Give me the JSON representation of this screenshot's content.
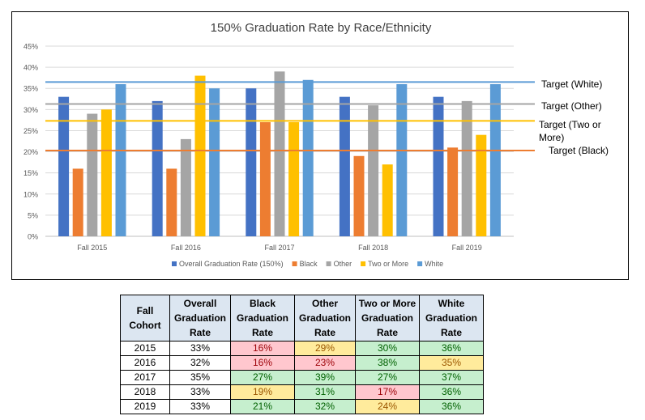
{
  "chart_data": {
    "type": "bar",
    "title": "150% Graduation Rate by Race/Ethnicity",
    "categories": [
      "Fall 2015",
      "Fall 2016",
      "Fall 2017",
      "Fall 2018",
      "Fall 2019"
    ],
    "series": [
      {
        "name": "Overall Graduation Rate (150%)",
        "color": "#4472c4",
        "values": [
          33,
          32,
          35,
          33,
          33
        ]
      },
      {
        "name": "Black",
        "color": "#ed7d31",
        "values": [
          16,
          16,
          27,
          19,
          21
        ]
      },
      {
        "name": "Other",
        "color": "#a5a5a5",
        "values": [
          29,
          23,
          39,
          31,
          32
        ]
      },
      {
        "name": "Two or More",
        "color": "#ffc000",
        "values": [
          30,
          38,
          27,
          17,
          24
        ]
      },
      {
        "name": "White",
        "color": "#5b9bd5",
        "values": [
          36,
          35,
          37,
          36,
          36
        ]
      }
    ],
    "targets": [
      {
        "label": "Target (White)",
        "value": 36.5,
        "color": "#5b9bd5"
      },
      {
        "label": "Target (Other)",
        "value": 31.3,
        "color": "#a5a5a5"
      },
      {
        "label": "Target (Two or More)",
        "value": 27.3,
        "color": "#ffc000"
      },
      {
        "label": "Target (Black)",
        "value": 20.3,
        "color": "#ed7d31"
      }
    ],
    "yticks": [
      "0%",
      "5%",
      "10%",
      "15%",
      "20%",
      "25%",
      "30%",
      "35%",
      "40%",
      "45%"
    ],
    "ylim": [
      0,
      45
    ],
    "xlabel": "",
    "ylabel": "",
    "legend": "bottom",
    "grid": true
  },
  "target_labels": {
    "white": "Target (White)",
    "other": "Target (Other)",
    "two_line1": "Target (Two or",
    "two_line2": "More)",
    "black": "Target (Black)"
  },
  "table": {
    "headers": [
      [
        "Fall",
        "Cohort"
      ],
      [
        "Overall",
        "Graduation",
        "Rate"
      ],
      [
        "Black",
        "Graduation",
        "Rate"
      ],
      [
        "Other",
        "Graduation",
        "Rate"
      ],
      [
        "Two or More",
        "Graduation",
        "Rate"
      ],
      [
        "White",
        "Graduation",
        "Rate"
      ]
    ],
    "rows": [
      [
        "2015",
        "33%",
        "16%",
        "29%",
        "30%",
        "36%"
      ],
      [
        "2016",
        "32%",
        "16%",
        "23%",
        "38%",
        "35%"
      ],
      [
        "2017",
        "35%",
        "27%",
        "39%",
        "27%",
        "37%"
      ],
      [
        "2018",
        "33%",
        "19%",
        "31%",
        "17%",
        "36%"
      ],
      [
        "2019",
        "33%",
        "21%",
        "32%",
        "24%",
        "36%"
      ]
    ],
    "row_styles": [
      [
        "plain",
        "plain",
        "bad",
        "mid",
        "good",
        "good"
      ],
      [
        "plain",
        "plain",
        "bad",
        "bad",
        "good",
        "mid"
      ],
      [
        "plain",
        "plain",
        "good",
        "good",
        "good",
        "good"
      ],
      [
        "plain",
        "plain",
        "mid",
        "good",
        "bad",
        "good"
      ],
      [
        "plain",
        "plain",
        "good",
        "good",
        "mid",
        "good"
      ]
    ]
  }
}
